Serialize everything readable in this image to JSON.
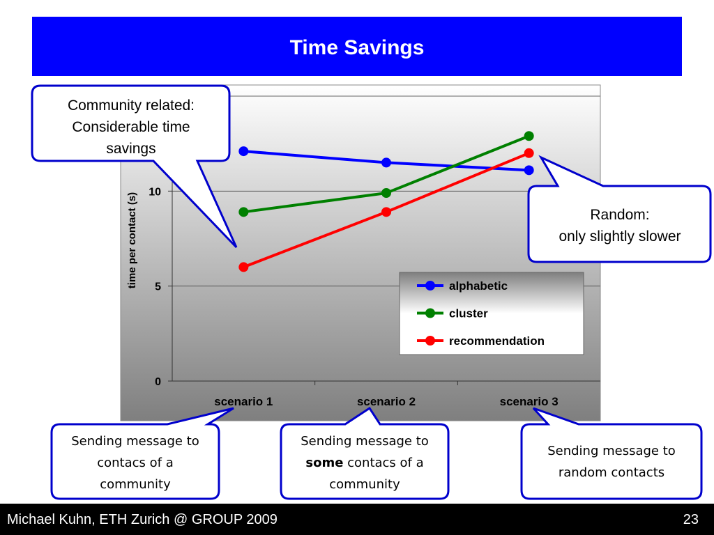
{
  "slide": {
    "title": "Time Savings",
    "footer_text": "Michael Kuhn, ETH Zurich @ GROUP 2009",
    "page_number": "23"
  },
  "colors": {
    "title_bar": "#0000ff",
    "callout_border": "#0000cc",
    "alphabetic": "#0000ff",
    "cluster": "#008000",
    "recommendation": "#ff0000"
  },
  "chart_data": {
    "type": "line",
    "categories": [
      "scenario 1",
      "scenario 2",
      "scenario 3"
    ],
    "ylabel": "time per contact (s)",
    "xlabel": "",
    "title": "",
    "ylim": [
      0,
      15
    ],
    "y_ticks": [
      "0",
      "5",
      "10"
    ],
    "grid": true,
    "legend_position": "bottom-right",
    "series": [
      {
        "name": "alphabetic",
        "values": [
          12.1,
          11.5,
          11.1
        ]
      },
      {
        "name": "cluster",
        "values": [
          8.9,
          9.9,
          12.9
        ]
      },
      {
        "name": "recommendation",
        "values": [
          6.0,
          8.9,
          12.0
        ]
      }
    ]
  },
  "callouts": {
    "community": {
      "line1": "Community related:",
      "line2": "Considerable time",
      "line3": "savings"
    },
    "random": {
      "line1": "Random:",
      "line2": "only slightly slower"
    },
    "scenario1": {
      "line1": "Sending message to",
      "line2": "contacs of a",
      "line3": "community"
    },
    "scenario2": {
      "line1": "Sending message to",
      "bold": "some",
      "rest": " contacs of a",
      "line3": "community"
    },
    "scenario3": {
      "line1": "Sending message to",
      "line2": "random contacts"
    }
  }
}
